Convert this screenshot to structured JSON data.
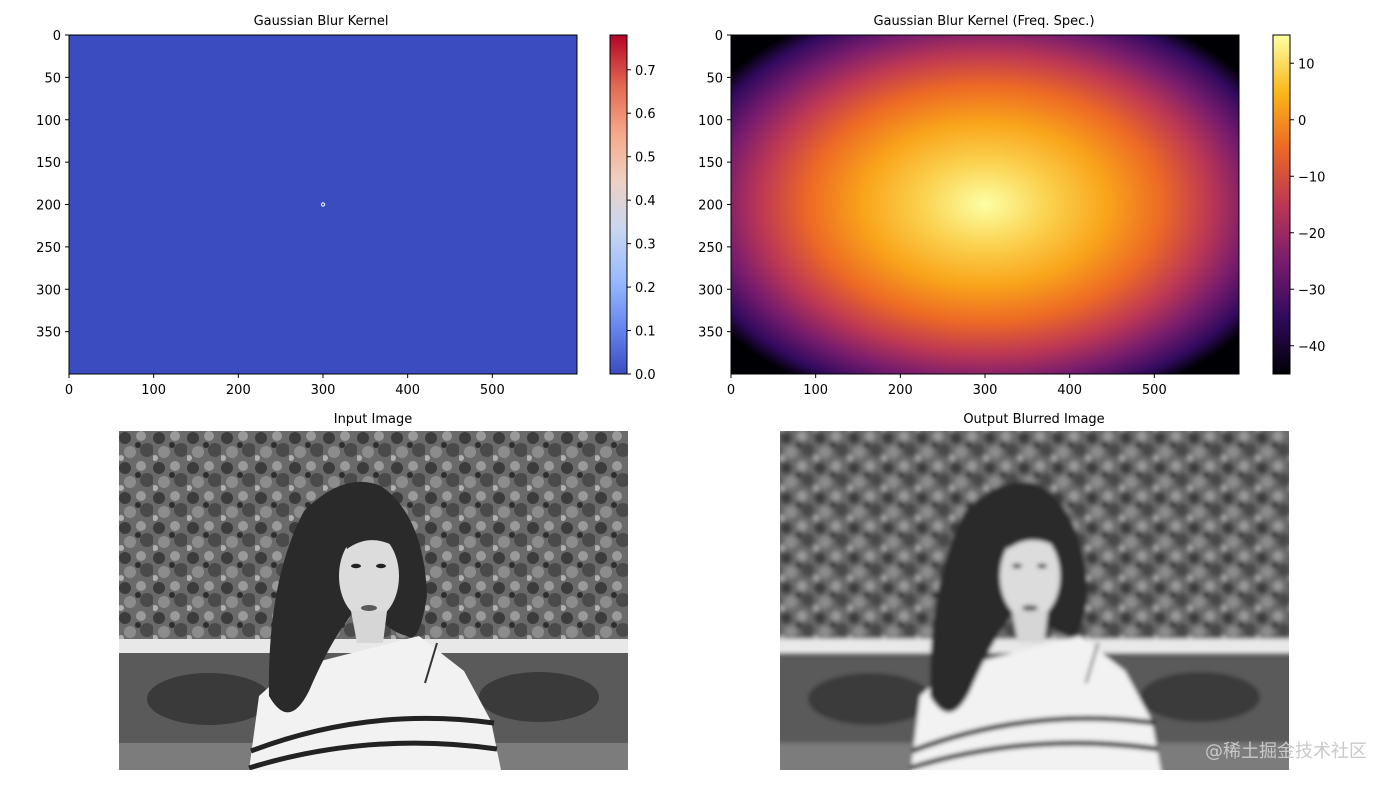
{
  "chart_data": [
    {
      "type": "heatmap",
      "title": "Gaussian Blur Kernel",
      "xlim": [
        0,
        600
      ],
      "ylim": [
        400,
        0
      ],
      "x_ticks": [
        0,
        100,
        200,
        300,
        400,
        500
      ],
      "y_ticks": [
        0,
        50,
        100,
        150,
        200,
        250,
        300,
        350
      ],
      "colormap": "coolwarm",
      "colorbar": {
        "min": 0.0,
        "max": 0.78,
        "ticks": [
          "0.0",
          "0.1",
          "0.2",
          "0.3",
          "0.4",
          "0.5",
          "0.6",
          "0.7"
        ]
      },
      "peak": {
        "x": 300,
        "y": 200
      },
      "background_color": "#3b4cc0"
    },
    {
      "type": "heatmap",
      "title": "Gaussian Blur Kernel (Freq. Spec.)",
      "xlim": [
        0,
        600
      ],
      "ylim": [
        400,
        0
      ],
      "x_ticks": [
        0,
        100,
        200,
        300,
        400,
        500
      ],
      "y_ticks": [
        0,
        50,
        100,
        150,
        200,
        250,
        300,
        350
      ],
      "colormap": "inferno",
      "colorbar": {
        "min": -45,
        "max": 15,
        "ticks": [
          "10",
          "0",
          "−10",
          "−20",
          "−30",
          "−40"
        ]
      },
      "center": {
        "x": 300,
        "y": 200
      }
    }
  ],
  "images": [
    {
      "title": "Input Image",
      "description_icon": "grayscale-portrait"
    },
    {
      "title": "Output Blurred Image",
      "description_icon": "grayscale-portrait-blurred"
    }
  ],
  "watermark": "@稀土掘金技术社区",
  "colors": {
    "coolwarm": [
      "#3b4cc0",
      "#6788ee",
      "#9abbff",
      "#c9d7f0",
      "#edd1c2",
      "#f7a889",
      "#e26952",
      "#b40426"
    ],
    "inferno": [
      "#000004",
      "#320a5e",
      "#781c6d",
      "#bc3754",
      "#ed6925",
      "#fbb61a",
      "#fcffa4"
    ]
  }
}
